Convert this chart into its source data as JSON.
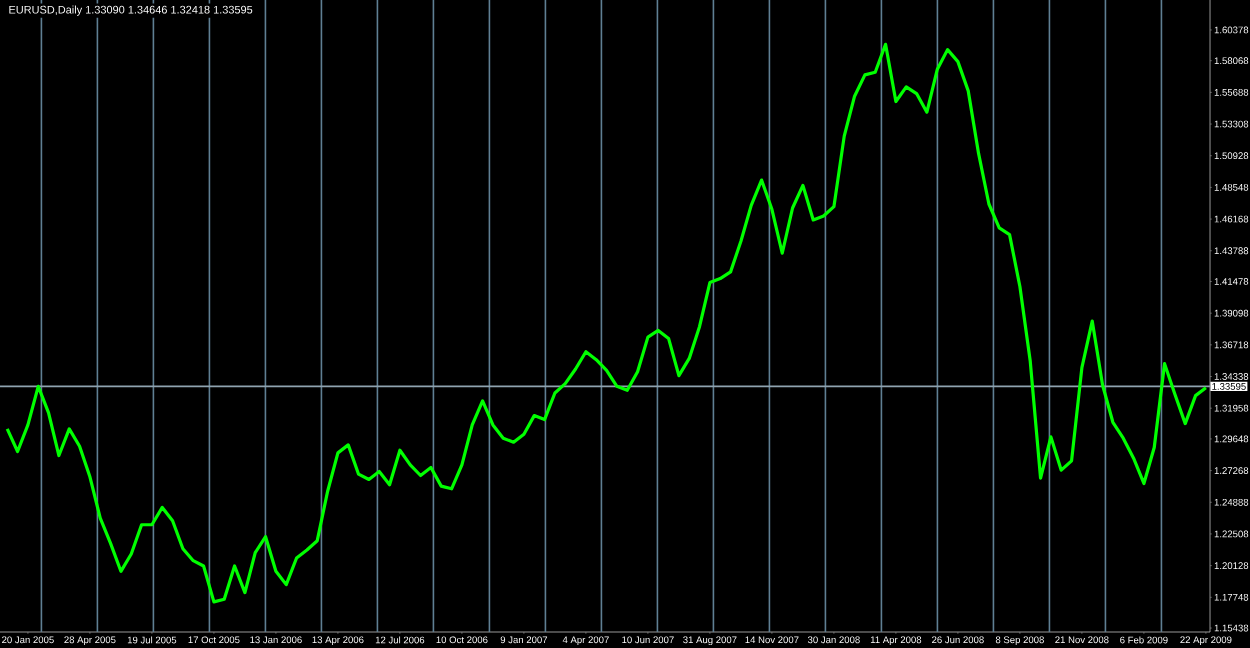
{
  "chart_data": {
    "type": "line",
    "title": "EURUSD,Daily  1.33090 1.34646 1.32418 1.33595",
    "categories": [
      null,
      null,
      "20 Jan 2005",
      null,
      null,
      null,
      null,
      null,
      "28 Apr 2005",
      null,
      null,
      null,
      null,
      null,
      "19 Jul 2005",
      null,
      null,
      null,
      null,
      null,
      "17 Oct 2005",
      null,
      null,
      null,
      null,
      null,
      "13 Jan 2006",
      null,
      null,
      null,
      null,
      null,
      "13 Apr 2006",
      null,
      null,
      null,
      null,
      null,
      "12 Jul 2006",
      null,
      null,
      null,
      null,
      null,
      "10 Oct 2006",
      null,
      null,
      null,
      null,
      null,
      "9 Jan 2007",
      null,
      null,
      null,
      null,
      null,
      "4 Apr 2007",
      null,
      null,
      null,
      null,
      null,
      "10 Jun 2007",
      null,
      null,
      null,
      null,
      null,
      "31 Aug 2007",
      null,
      null,
      null,
      null,
      null,
      "14 Nov 2007",
      null,
      null,
      null,
      null,
      null,
      "30 Jan 2008",
      null,
      null,
      null,
      null,
      null,
      "11 Apr 2008",
      null,
      null,
      null,
      null,
      null,
      "26 Jun 2008",
      null,
      null,
      null,
      null,
      null,
      "8 Sep 2008",
      null,
      null,
      null,
      null,
      null,
      "21 Nov 2008",
      null,
      null,
      null,
      null,
      null,
      "6 Feb 2009",
      null,
      null,
      null,
      null,
      null,
      "22 Apr 2009"
    ],
    "series": [
      {
        "color": "#00ff00",
        "values": [
          1.304,
          1.287,
          1.307,
          1.336,
          1.316,
          1.284,
          1.304,
          1.291,
          1.268,
          1.237,
          1.218,
          1.197,
          1.21,
          1.232,
          1.232,
          1.245,
          1.235,
          1.214,
          1.205,
          1.201,
          1.174,
          1.176,
          1.201,
          1.181,
          1.211,
          1.223,
          1.197,
          1.187,
          1.207,
          1.213,
          1.22,
          1.257,
          1.286,
          1.292,
          1.27,
          1.266,
          1.272,
          1.262,
          1.288,
          1.277,
          1.269,
          1.275,
          1.261,
          1.259,
          1.277,
          1.307,
          1.325,
          1.307,
          1.297,
          1.294,
          1.3,
          1.314,
          1.311,
          1.331,
          1.338,
          1.349,
          1.362,
          1.356,
          1.348,
          1.336,
          1.333,
          1.347,
          1.373,
          1.378,
          1.372,
          1.344,
          1.357,
          1.381,
          1.414,
          1.417,
          1.422,
          1.445,
          1.472,
          1.491,
          1.469,
          1.436,
          1.47,
          1.487,
          1.461,
          1.464,
          1.471,
          1.524,
          1.554,
          1.57,
          1.572,
          1.593,
          1.55,
          1.561,
          1.556,
          1.542,
          1.574,
          1.589,
          1.58,
          1.558,
          1.511,
          1.473,
          1.455,
          1.45,
          1.411,
          1.355,
          1.267,
          1.298,
          1.273,
          1.28,
          1.35,
          1.385,
          1.337,
          1.309,
          1.297,
          1.282,
          1.263,
          1.29,
          1.353,
          1.33,
          1.308,
          1.329,
          1.335
        ]
      }
    ],
    "ylim": [
      1.1514,
      1.6263
    ],
    "yticks": [
      1.15438,
      1.17748,
      1.20128,
      1.22508,
      1.24888,
      1.27268,
      1.29648,
      1.31958,
      1.34338,
      1.36718,
      1.39098,
      1.41478,
      1.43788,
      1.46168,
      1.48548,
      1.50928,
      1.53308,
      1.55688,
      1.58068,
      1.60378
    ],
    "marker": "none",
    "line_style": "solid",
    "ref_lines": [
      {
        "axis": "y",
        "value": 1.33595,
        "label": "1.33595",
        "color": "#8fa3b0"
      }
    ]
  }
}
